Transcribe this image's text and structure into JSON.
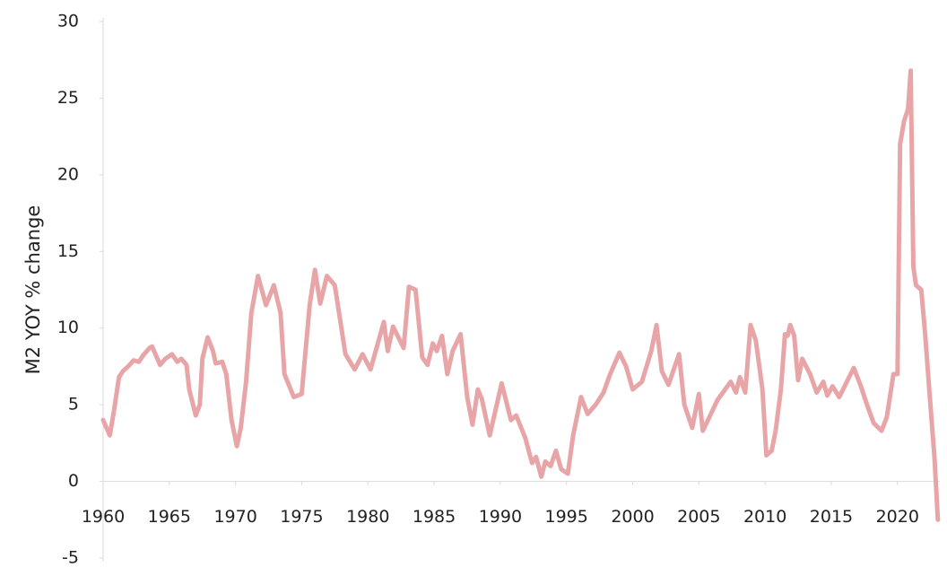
{
  "chart_data": {
    "type": "line",
    "ylabel": "M2 YOY % change",
    "x": [
      1960,
      1960.5,
      1960.8,
      1961.2,
      1961.5,
      1961.9,
      1962.3,
      1962.7,
      1963,
      1963.5,
      1963.7,
      1964.3,
      1964.7,
      1965.2,
      1965.6,
      1965.9,
      1966.3,
      1966.5,
      1967,
      1967.3,
      1967.5,
      1967.9,
      1968.3,
      1968.5,
      1969,
      1969.3,
      1969.7,
      1970.1,
      1970.4,
      1970.8,
      1971.2,
      1971.7,
      1972.3,
      1972.9,
      1973.4,
      1973.7,
      1974.4,
      1975,
      1975.6,
      1976,
      1976.4,
      1976.9,
      1977.5,
      1978.3,
      1979,
      1979.6,
      1980.2,
      1981.2,
      1981.5,
      1981.9,
      1982.7,
      1983.1,
      1983.6,
      1984.1,
      1984.5,
      1984.9,
      1985.2,
      1985.6,
      1986,
      1986.4,
      1987,
      1987.5,
      1987.9,
      1988.3,
      1988.6,
      1989.2,
      1990.1,
      1990.8,
      1991.2,
      1991.9,
      1992.4,
      1992.7,
      1993.1,
      1993.4,
      1993.8,
      1994.2,
      1994.6,
      1995.1,
      1995.5,
      1996.1,
      1996.6,
      1997.2,
      1997.8,
      1998.3,
      1999,
      1999.5,
      2000,
      2000.7,
      2001.4,
      2001.8,
      2002.2,
      2002.7,
      2003.5,
      2003.9,
      2004.5,
      2005,
      2005.3,
      2005.8,
      2006.4,
      2007.4,
      2007.8,
      2008.1,
      2008.5,
      2008.9,
      2009.3,
      2009.8,
      2010.1,
      2010.5,
      2010.8,
      2011.2,
      2011.5,
      2011.7,
      2011.9,
      2012.2,
      2012.5,
      2012.8,
      2013.4,
      2013.9,
      2014.4,
      2014.7,
      2015.1,
      2015.6,
      2016.7,
      2017.2,
      2017.7,
      2018.2,
      2018.8,
      2019.2,
      2019.7,
      2020,
      2020.2,
      2020.5,
      2020.8,
      2021,
      2021.2,
      2021.4,
      2021.8,
      2022.1,
      2022.4,
      2022.8,
      2023.05
    ],
    "series": [
      {
        "name": "M2 YOY % change",
        "color": "#e8a5a8",
        "values": [
          4,
          3,
          4.5,
          6.8,
          7.2,
          7.5,
          7.9,
          7.8,
          8.2,
          8.7,
          8.8,
          7.6,
          8,
          8.3,
          7.8,
          8,
          7.6,
          6,
          4.3,
          5,
          8,
          9.4,
          8.5,
          7.7,
          7.8,
          7,
          4,
          2.3,
          3.5,
          6.5,
          11,
          13.4,
          11.5,
          12.8,
          11,
          7,
          5.5,
          5.7,
          11.5,
          13.8,
          11.6,
          13.4,
          12.8,
          8.3,
          7.3,
          8.3,
          7.3,
          10.4,
          8.5,
          10.1,
          8.7,
          12.7,
          12.5,
          8.1,
          7.6,
          9,
          8.5,
          9.5,
          7,
          8.5,
          9.6,
          5.5,
          3.7,
          6,
          5.4,
          3,
          6.4,
          4,
          4.3,
          2.8,
          1.2,
          1.6,
          0.3,
          1.3,
          1,
          2,
          0.8,
          0.5,
          3,
          5.5,
          4.4,
          5,
          5.8,
          7,
          8.4,
          7.5,
          6,
          6.5,
          8.5,
          10.2,
          7.2,
          6.3,
          8.3,
          5,
          3.5,
          5.7,
          3.3,
          4.2,
          5.3,
          6.5,
          5.8,
          6.8,
          5.8,
          10.2,
          9.2,
          6,
          1.7,
          2,
          3.3,
          6,
          9.6,
          9.5,
          10.2,
          9.5,
          6.6,
          8,
          7,
          5.8,
          6.5,
          5.6,
          6.2,
          5.5,
          7.4,
          6.3,
          5,
          3.8,
          3.3,
          4.2,
          7,
          7,
          22,
          23.5,
          24.3,
          26.8,
          14,
          12.8,
          12.5,
          9.5,
          6,
          1.5,
          -2.5
        ]
      }
    ],
    "xlim": [
      1960,
      2023.2
    ],
    "xticks": [
      1960,
      1965,
      1970,
      1975,
      1980,
      1985,
      1990,
      1995,
      2000,
      2005,
      2010,
      2015,
      2020
    ],
    "ylim": [
      -5,
      30
    ],
    "yticks": [
      -5,
      0,
      5,
      10,
      15,
      20,
      25,
      30
    ],
    "grid": false
  }
}
